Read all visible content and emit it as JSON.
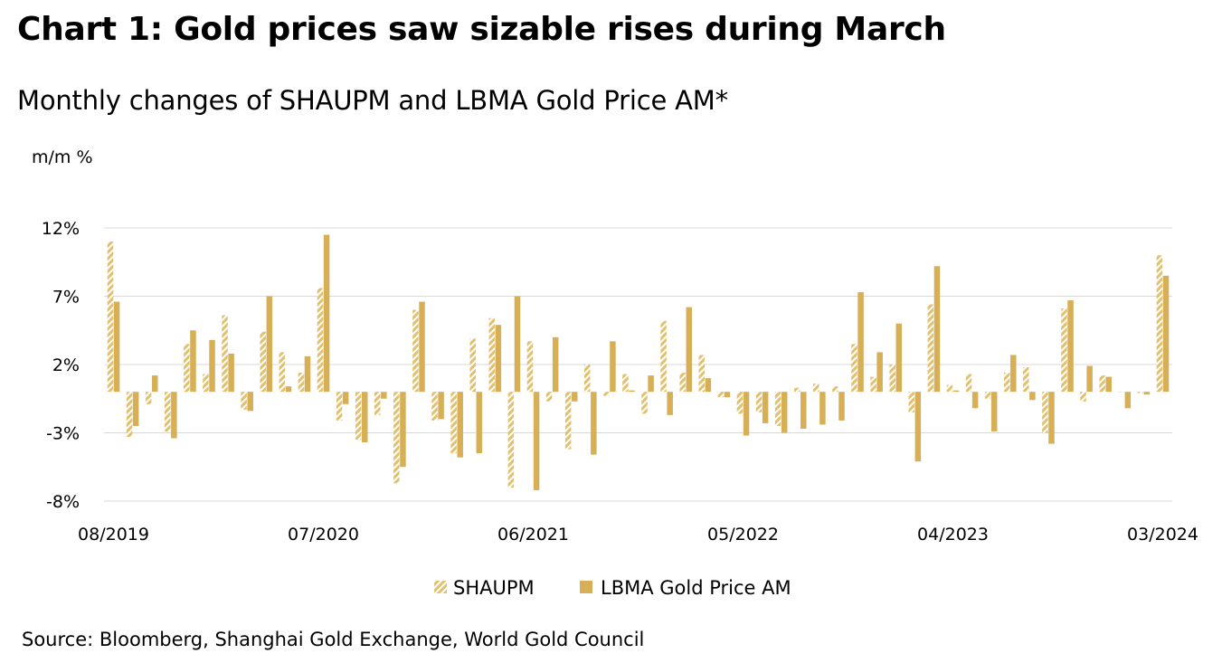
{
  "title": "Chart 1: Gold prices saw sizable rises during March",
  "subtitle": "Monthly changes of SHAUPM and LBMA Gold Price AM*",
  "source": "Source: Bloomberg, Shanghai Gold Exchange, World Gold Council",
  "chart_data": {
    "type": "bar",
    "ylabel": "m/m %",
    "ylim": [
      -8,
      12
    ],
    "yticks": [
      12,
      7,
      2,
      -3,
      -8
    ],
    "ytick_labels": [
      "12%",
      "7%",
      "2%",
      "-3%",
      "-8%"
    ],
    "xtick_labels": [
      "08/2019",
      "07/2020",
      "06/2021",
      "05/2022",
      "04/2023",
      "03/2024"
    ],
    "xtick_indices": [
      0,
      11,
      22,
      33,
      44,
      55
    ],
    "grid": true,
    "legend_position": "bottom",
    "colors": {
      "shaupm": "#e3c06e",
      "lbma": "#d7af57",
      "grid": "#d9d9d9"
    },
    "series": [
      {
        "name": "SHAUPM",
        "style": "hatched",
        "values": [
          11.0,
          -3.3,
          -0.9,
          -2.9,
          3.5,
          1.3,
          5.6,
          -1.3,
          4.4,
          2.9,
          1.4,
          7.6,
          -2.1,
          -3.5,
          -1.7,
          -6.7,
          6.0,
          -2.1,
          -4.5,
          3.9,
          5.4,
          -7.0,
          3.7,
          -0.7,
          -4.2,
          2.0,
          -0.3,
          1.3,
          -1.6,
          5.2,
          1.4,
          2.7,
          -0.4,
          -1.6,
          -1.5,
          -2.5,
          0.3,
          0.6,
          0.4,
          3.5,
          1.1,
          2.0,
          -1.5,
          6.4,
          0.5,
          1.3,
          -0.5,
          1.4,
          1.8,
          -3.0,
          6.1,
          -0.7,
          1.2,
          0.0,
          -0.1,
          10.0
        ],
        "symbol": "▞"
      },
      {
        "name": "LBMA Gold Price AM",
        "style": "solid",
        "values": [
          6.6,
          -2.5,
          1.2,
          -3.4,
          4.5,
          3.8,
          2.8,
          -1.4,
          7.0,
          0.4,
          2.6,
          11.5,
          -0.9,
          -3.7,
          -0.5,
          -5.5,
          6.6,
          -2.0,
          -4.8,
          -4.5,
          4.9,
          7.0,
          -7.2,
          4.0,
          -0.7,
          -4.6,
          3.7,
          0.1,
          1.2,
          -1.7,
          6.2,
          1.0,
          -0.4,
          -3.2,
          -2.3,
          -3.0,
          -2.7,
          -2.4,
          -2.1,
          7.3,
          2.9,
          5.0,
          -5.1,
          9.2,
          0.1,
          -1.2,
          -2.9,
          2.7,
          -0.6,
          -3.8,
          6.7,
          1.9,
          1.1,
          -1.2,
          -0.2,
          8.5
        ],
        "symbol": "■"
      }
    ]
  }
}
